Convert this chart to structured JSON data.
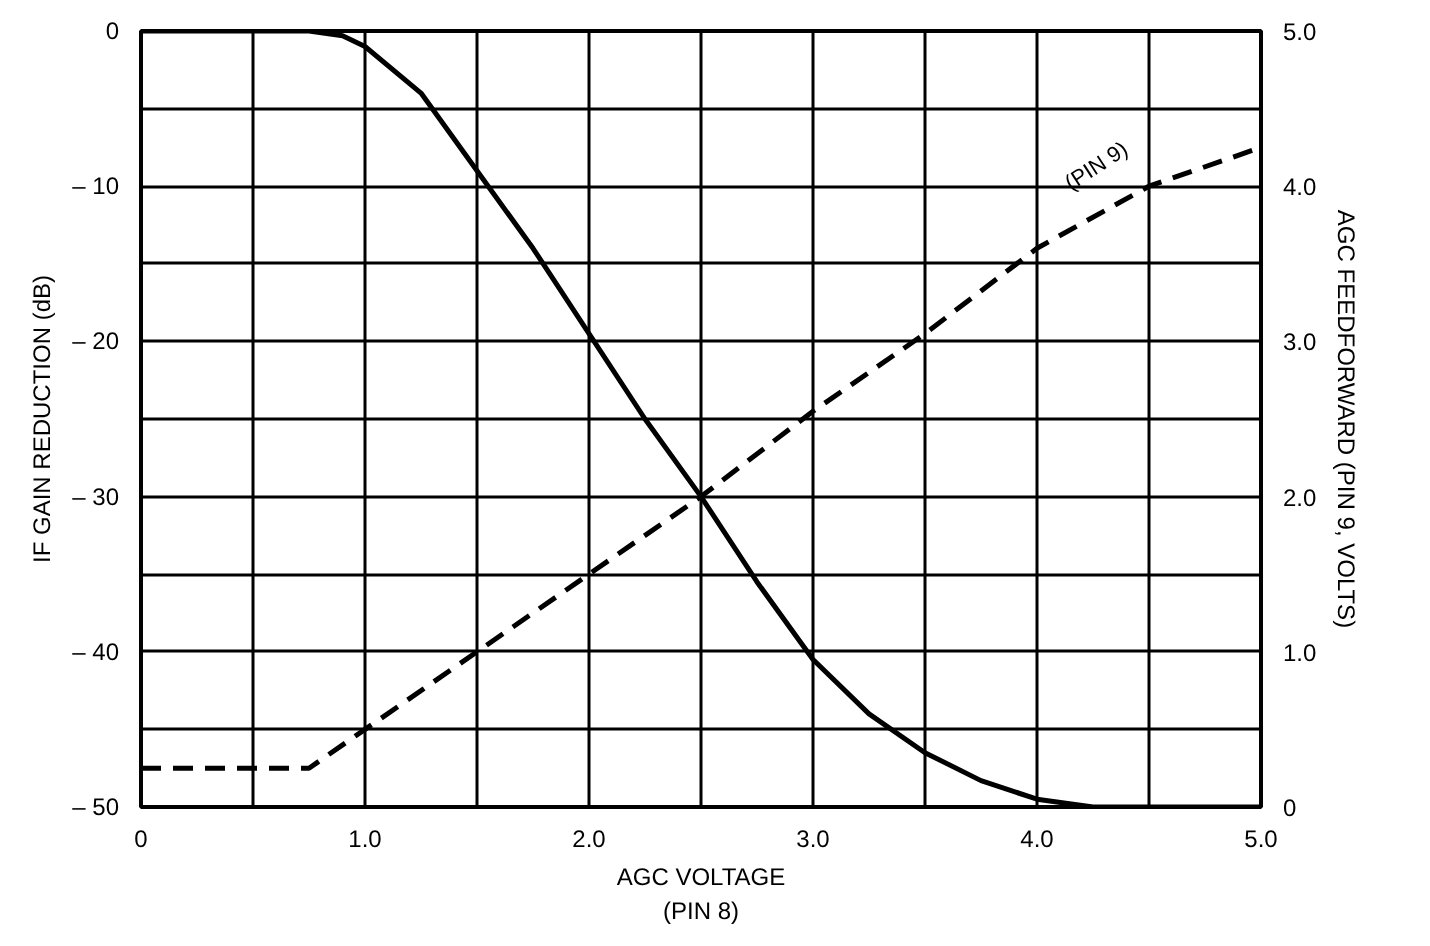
{
  "chart_data": {
    "type": "line",
    "xlabel": "AGC VOLTAGE\n(PIN 8)",
    "ylabel": "IF GAIN REDUCTION (dB)",
    "y2label": "AGC FEEDFORWARD (PIN 9, VOLTS)",
    "xlim": [
      0,
      5
    ],
    "ylim": [
      -50,
      0
    ],
    "y2lim": [
      0,
      5
    ],
    "xticks": [
      0,
      {
        "value": 0.5,
        "label": null
      },
      {
        "value": 1,
        "label": "1.0"
      },
      {
        "value": 1.5,
        "label": null
      },
      {
        "value": 2,
        "label": "2.0"
      },
      {
        "value": 2.5,
        "label": null
      },
      {
        "value": 3,
        "label": "3.0"
      },
      {
        "value": 3.5,
        "label": null
      },
      {
        "value": 4,
        "label": "4.0"
      },
      {
        "value": 4.5,
        "label": null
      },
      {
        "value": 5,
        "label": "5.0"
      }
    ],
    "yticks": [
      {
        "value": -50,
        "label": "– 50"
      },
      {
        "value": -45,
        "label": null
      },
      {
        "value": -40,
        "label": "– 40"
      },
      {
        "value": -35,
        "label": null
      },
      {
        "value": -30,
        "label": "– 30"
      },
      {
        "value": -25,
        "label": null
      },
      {
        "value": -20,
        "label": "– 20"
      },
      {
        "value": -15,
        "label": null
      },
      {
        "value": -10,
        "label": "– 10"
      },
      {
        "value": -5,
        "label": null
      },
      0
    ],
    "y2ticks": [
      0,
      {
        "value": 1,
        "label": "1.0"
      },
      {
        "value": 2,
        "label": "2.0"
      },
      {
        "value": 3,
        "label": "3.0"
      },
      {
        "value": 4,
        "label": "4.0"
      },
      {
        "value": 5,
        "label": "5.0"
      }
    ],
    "grid": true,
    "marker": "none",
    "series": [
      {
        "color": "#000000",
        "line_style": "solid",
        "x": [
          0,
          0.5,
          0.75,
          0.9,
          1.0,
          1.25,
          1.5,
          1.75,
          2.0,
          2.25,
          2.5,
          2.75,
          3.0,
          3.25,
          3.5,
          3.75,
          4.0,
          4.25,
          4.5,
          5.0
        ],
        "values": [
          0,
          0,
          0,
          -0.3,
          -1,
          -4,
          -9,
          -14,
          -19.5,
          -25,
          -30,
          -35.5,
          -40.5,
          -44,
          -46.5,
          -48.3,
          -49.5,
          -50,
          -50,
          -50
        ]
      },
      {
        "color": "#000000",
        "line_style": "dashed",
        "axis": "y2",
        "x": [
          0,
          0.75,
          1.0,
          1.5,
          2.0,
          2.5,
          3.0,
          3.5,
          4.0,
          4.5,
          5.0
        ],
        "values": [
          0.25,
          0.25,
          0.5,
          1.0,
          1.5,
          2.0,
          2.55,
          3.05,
          3.6,
          4.0,
          4.25
        ]
      }
    ],
    "annotations": [
      "(PIN 9)"
    ]
  }
}
